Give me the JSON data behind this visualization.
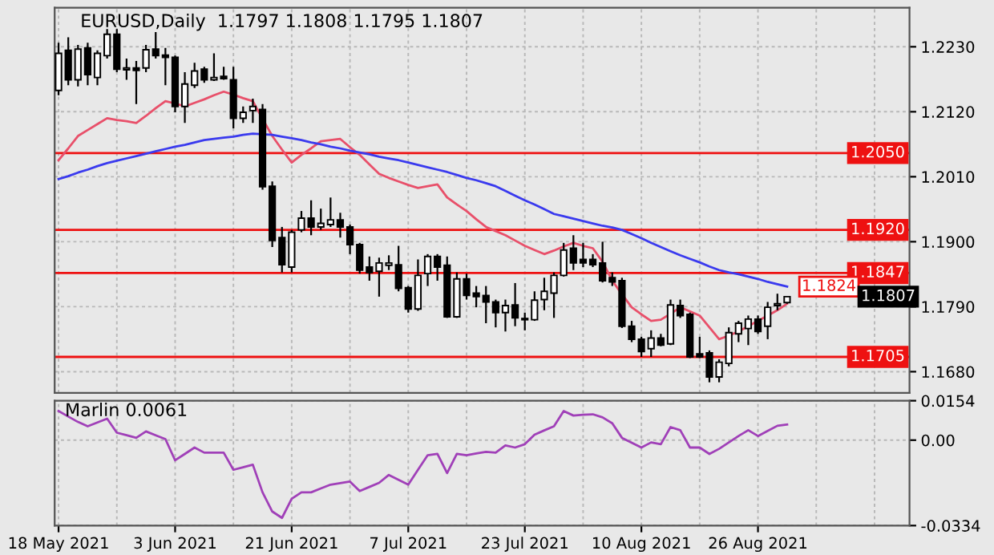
{
  "chart_data": [
    {
      "type": "candlestick",
      "title": "EURUSD,Daily  1.1797 1.1808 1.1795 1.1807",
      "categories": [
        null,
        null,
        null,
        null,
        null,
        null,
        null,
        null,
        null,
        null,
        null,
        null,
        null,
        null,
        null,
        null,
        null,
        null,
        null,
        null,
        null,
        null,
        null,
        null,
        null,
        null,
        null,
        null,
        null,
        null,
        null,
        null,
        null,
        null,
        null,
        null,
        null,
        null,
        null,
        null,
        null,
        null,
        null,
        null,
        null,
        null,
        null,
        null,
        null,
        null,
        null,
        null,
        null,
        null,
        null,
        null,
        null,
        null,
        null,
        null,
        null,
        null,
        null,
        null,
        null,
        null,
        null,
        null,
        null,
        null,
        null,
        null,
        null,
        null,
        null,
        null
      ],
      "ohlc": [
        [
          1.2156,
          1.2237,
          1.2148,
          1.2219
        ],
        [
          1.2224,
          1.2246,
          1.2165,
          1.2174
        ],
        [
          1.2174,
          1.2233,
          1.2163,
          1.2226
        ],
        [
          1.2228,
          1.2237,
          1.2165,
          1.2183
        ],
        [
          1.2178,
          1.2224,
          1.2165,
          1.2219
        ],
        [
          1.2215,
          1.226,
          1.221,
          1.2251
        ],
        [
          1.2251,
          1.226,
          1.2187,
          1.2192
        ],
        [
          1.2191,
          1.221,
          1.2174,
          1.2194
        ],
        [
          1.2194,
          1.2206,
          1.2133,
          1.219
        ],
        [
          1.2194,
          1.2233,
          1.2187,
          1.2225
        ],
        [
          1.2226,
          1.2255,
          1.221,
          1.2215
        ],
        [
          1.2216,
          1.2228,
          1.2165,
          1.2212
        ],
        [
          1.2212,
          1.2215,
          1.2119,
          1.2129
        ],
        [
          1.2129,
          1.2187,
          1.2101,
          1.2167
        ],
        [
          1.2165,
          1.2203,
          1.216,
          1.2189
        ],
        [
          1.2192,
          1.2196,
          1.2169,
          1.2174
        ],
        [
          1.2174,
          1.2219,
          1.2172,
          1.2178
        ],
        [
          1.218,
          1.2196,
          1.2174,
          1.2176
        ],
        [
          1.2174,
          1.2196,
          1.2092,
          1.2109
        ],
        [
          1.2109,
          1.2129,
          1.2101,
          1.2119
        ],
        [
          1.2122,
          1.2142,
          1.2101,
          1.2129
        ],
        [
          1.2124,
          1.2133,
          1.1988,
          1.1993
        ],
        [
          1.1994,
          1.2002,
          1.1891,
          1.1902
        ],
        [
          1.1907,
          1.1925,
          1.1848,
          1.1861
        ],
        [
          1.1857,
          1.192,
          1.1848,
          1.1916
        ],
        [
          1.192,
          1.1952,
          1.1916,
          1.194
        ],
        [
          1.194,
          1.197,
          1.1911,
          1.1925
        ],
        [
          1.1925,
          1.1956,
          1.192,
          1.1931
        ],
        [
          1.1929,
          1.1975,
          1.1925,
          1.1937
        ],
        [
          1.1937,
          1.1949,
          1.1907,
          1.1925
        ],
        [
          1.1925,
          1.1929,
          1.1879,
          1.1895
        ],
        [
          1.1895,
          1.1898,
          1.1846,
          1.1852
        ],
        [
          1.1857,
          1.1875,
          1.1834,
          1.1848
        ],
        [
          1.185,
          1.1873,
          1.1807,
          1.1864
        ],
        [
          1.186,
          1.1877,
          1.1852,
          1.1864
        ],
        [
          1.1861,
          1.1893,
          1.1816,
          1.1821
        ],
        [
          1.1822,
          1.1825,
          1.178,
          1.1786
        ],
        [
          1.1786,
          1.187,
          1.1783,
          1.1843
        ],
        [
          1.1846,
          1.1879,
          1.1825,
          1.1875
        ],
        [
          1.1875,
          1.1879,
          1.1834,
          1.1857
        ],
        [
          1.186,
          1.1875,
          1.1771,
          1.1773
        ],
        [
          1.1773,
          1.1848,
          1.1771,
          1.1837
        ],
        [
          1.1837,
          1.1846,
          1.1802,
          1.1809
        ],
        [
          1.1813,
          1.1825,
          1.1789,
          1.1807
        ],
        [
          1.1809,
          1.1825,
          1.1762,
          1.1798
        ],
        [
          1.1798,
          1.1802,
          1.1755,
          1.178
        ],
        [
          1.178,
          1.1802,
          1.1748,
          1.1792
        ],
        [
          1.1793,
          1.183,
          1.1757,
          1.1771
        ],
        [
          1.1768,
          1.178,
          1.175,
          1.177
        ],
        [
          1.1768,
          1.1816,
          1.1766,
          1.1801
        ],
        [
          1.1802,
          1.1839,
          1.1784,
          1.1816
        ],
        [
          1.1813,
          1.1848,
          1.1771,
          1.1843
        ],
        [
          1.1843,
          1.1898,
          1.1841,
          1.1886
        ],
        [
          1.1889,
          1.1911,
          1.1852,
          1.1864
        ],
        [
          1.187,
          1.1898,
          1.1857,
          1.1864
        ],
        [
          1.187,
          1.1879,
          1.1857,
          1.1861
        ],
        [
          1.1864,
          1.19,
          1.1831,
          1.1834
        ],
        [
          1.1839,
          1.1848,
          1.1825,
          1.1832
        ],
        [
          1.1834,
          1.1839,
          1.1754,
          1.1757
        ],
        [
          1.1757,
          1.1766,
          1.173,
          1.1735
        ],
        [
          1.1735,
          1.1739,
          1.1705,
          1.1714
        ],
        [
          1.1719,
          1.175,
          1.1705,
          1.1737
        ],
        [
          1.1737,
          1.1744,
          1.1723,
          1.1725
        ],
        [
          1.1727,
          1.1802,
          1.1725,
          1.1793
        ],
        [
          1.1792,
          1.1802,
          1.1771,
          1.1775
        ],
        [
          1.1777,
          1.178,
          1.1703,
          1.1705
        ],
        [
          1.171,
          1.1739,
          1.1703,
          1.1705
        ],
        [
          1.1712,
          1.1716,
          1.1662,
          1.1671
        ],
        [
          1.1671,
          1.1701,
          1.1662,
          1.1696
        ],
        [
          1.1694,
          1.1755,
          1.1689,
          1.1746
        ],
        [
          1.1744,
          1.1766,
          1.173,
          1.1762
        ],
        [
          1.1753,
          1.1775,
          1.1725,
          1.1769
        ],
        [
          1.1769,
          1.1775,
          1.1744,
          1.1748
        ],
        [
          1.1757,
          1.1798,
          1.1735,
          1.1789
        ],
        [
          1.1792,
          1.1812,
          1.1784,
          1.1795
        ],
        [
          1.1797,
          1.1808,
          1.1795,
          1.1807
        ]
      ],
      "series": [
        {
          "type": "line",
          "color": "#e8506a",
          "values": [
            1.2038,
            1.2058,
            1.2079,
            1.2089,
            1.2099,
            1.2109,
            1.2106,
            1.2104,
            1.2101,
            1.2113,
            1.2126,
            1.2138,
            1.2134,
            1.2129,
            1.2135,
            1.2141,
            1.2148,
            1.2154,
            1.2149,
            1.2143,
            1.2138,
            1.2108,
            1.2079,
            1.2056,
            1.2034,
            1.2047,
            1.2058,
            1.207,
            1.2072,
            1.2074,
            1.206,
            1.2047,
            1.2031,
            1.2015,
            1.2008,
            1.2002,
            1.1996,
            1.1991,
            1.1994,
            1.1997,
            1.1975,
            1.1963,
            1.1952,
            1.1938,
            1.1925,
            1.1918,
            1.1911,
            1.1902,
            1.1893,
            1.1886,
            1.1879,
            1.1885,
            1.1892,
            1.1898,
            1.1893,
            1.1889,
            1.1866,
            1.1834,
            1.1811,
            1.1789,
            1.1777,
            1.1766,
            1.1768,
            1.1778,
            1.1789,
            1.1782,
            1.1775,
            1.1755,
            1.1735,
            1.1741,
            1.1748,
            1.1757,
            1.1766,
            1.1775,
            1.1784,
            1.1795
          ]
        },
        {
          "type": "line",
          "color": "#3a3aee",
          "values": [
            1.2006,
            1.2011,
            1.2017,
            1.2022,
            1.2028,
            1.2033,
            1.2037,
            1.2041,
            1.2045,
            1.2049,
            1.2053,
            1.2057,
            1.2061,
            1.2064,
            1.2068,
            1.2072,
            1.2074,
            1.2076,
            1.2078,
            1.2081,
            1.2083,
            1.2082,
            1.2081,
            1.2078,
            1.2075,
            1.2072,
            1.2068,
            1.2065,
            1.2061,
            1.2058,
            1.2054,
            1.2051,
            1.2048,
            1.2044,
            1.2041,
            1.2038,
            1.2034,
            1.203,
            1.2026,
            1.2022,
            1.2018,
            1.2013,
            1.2008,
            1.2004,
            1.1999,
            1.1994,
            1.1986,
            1.1978,
            1.197,
            1.1963,
            1.1955,
            1.1947,
            1.1943,
            1.1939,
            1.1935,
            1.1931,
            1.1927,
            1.1924,
            1.192,
            1.1913,
            1.1906,
            1.1898,
            1.1891,
            1.1884,
            1.1877,
            1.1871,
            1.1865,
            1.1858,
            1.1852,
            1.1848,
            1.1845,
            1.1841,
            1.1837,
            1.1832,
            1.1828,
            1.1824
          ]
        }
      ],
      "ref_lines": [
        {
          "axis": "y",
          "value": 1.205,
          "label": "1.2050",
          "color": "#ee1111"
        },
        {
          "axis": "y",
          "value": 1.192,
          "label": "1.1920",
          "color": "#ee1111"
        },
        {
          "axis": "y",
          "value": 1.1847,
          "label": "1.1847",
          "color": "#ee1111"
        },
        {
          "axis": "y",
          "value": 1.1705,
          "label": "1.1705",
          "color": "#ee1111"
        }
      ],
      "annotations": [
        "1.1824",
        "1.1807"
      ],
      "ylim": [
        1.1644,
        1.2296
      ],
      "yticks": [
        {
          "value": 1.223,
          "label": "1.2230"
        },
        {
          "value": 1.212,
          "label": "1.2120"
        },
        {
          "value": 1.201,
          "label": "1.2010"
        },
        {
          "value": 1.19,
          "label": "1.1900"
        },
        {
          "value": 1.179,
          "label": "1.1790"
        },
        {
          "value": 1.168,
          "label": "1.1680"
        }
      ],
      "grid": true,
      "tick_labels": "y"
    },
    {
      "type": "line",
      "title": "Marlin 0.0061",
      "categories": [
        "18 May 2021",
        null,
        null,
        null,
        null,
        null,
        null,
        null,
        null,
        null,
        null,
        null,
        "3 Jun 2021",
        null,
        null,
        null,
        null,
        null,
        null,
        null,
        null,
        null,
        null,
        null,
        "21 Jun 2021",
        null,
        null,
        null,
        null,
        null,
        null,
        null,
        null,
        null,
        null,
        null,
        "7 Jul 2021",
        null,
        null,
        null,
        null,
        null,
        null,
        null,
        null,
        null,
        null,
        null,
        "23 Jul 2021",
        null,
        null,
        null,
        null,
        null,
        null,
        null,
        null,
        null,
        null,
        null,
        "10 Aug 2021",
        null,
        null,
        null,
        null,
        null,
        null,
        null,
        null,
        null,
        null,
        null,
        "26 Aug 2021",
        null,
        null,
        null
      ],
      "series": [
        {
          "color": "#a040b8",
          "values": [
            0.0114,
            0.0092,
            0.0071,
            0.0054,
            0.0069,
            0.0084,
            0.0029,
            0.0019,
            0.0009,
            0.0034,
            0.0019,
            0.0004,
            -0.0079,
            -0.0054,
            -0.0029,
            -0.0049,
            -0.0049,
            -0.0049,
            -0.0116,
            -0.0106,
            -0.0096,
            -0.0204,
            -0.0279,
            -0.0304,
            -0.0229,
            -0.0204,
            -0.0204,
            -0.0189,
            -0.0174,
            -0.0168,
            -0.0162,
            -0.0199,
            -0.0183,
            -0.0167,
            -0.0136,
            -0.0155,
            -0.0174,
            -0.0116,
            -0.0059,
            -0.0054,
            -0.0129,
            -0.0054,
            -0.0059,
            -0.0052,
            -0.0046,
            -0.0049,
            -0.0021,
            -0.0029,
            -0.0016,
            0.0021,
            0.0038,
            0.0054,
            0.0114,
            0.0096,
            0.0099,
            0.0101,
            0.0089,
            0.0066,
            0.0009,
            -0.001,
            -0.0029,
            -0.0009,
            -0.0016,
            0.0051,
            0.0039,
            -0.0029,
            -0.0029,
            -0.0054,
            -0.0034,
            -0.0009,
            0.0016,
            0.0039,
            0.0016,
            0.0036,
            0.0056,
            0.0061
          ]
        }
      ],
      "ylim": [
        -0.0334,
        0.0154
      ],
      "yticks": [
        0.0154,
        {
          "value": 0,
          "label": "0.00"
        },
        -0.0334
      ],
      "grid": true
    }
  ]
}
